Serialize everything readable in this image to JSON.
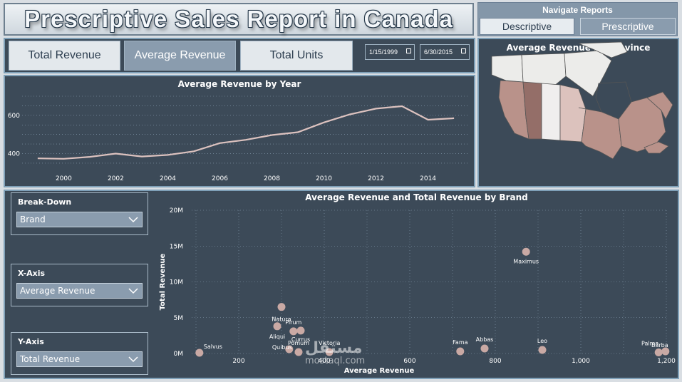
{
  "header": {
    "title": "Prescriptive Sales Report in Canada"
  },
  "navigate": {
    "title": "Navigate Reports",
    "descriptive": "Descriptive",
    "prescriptive": "Prescriptive"
  },
  "kpis": {
    "total_revenue": "Total Revenue",
    "average_revenue": "Average Revenue",
    "total_units": "Total Units"
  },
  "dates": {
    "start": "1/15/1999",
    "end": "6/30/2015"
  },
  "line_chart": {
    "title": "Average Revenue by Year"
  },
  "map_chart": {
    "title": "Average Revenue by Province"
  },
  "scatter_chart": {
    "title": "Average Revenue and Total Revenue by Brand"
  },
  "slicers": {
    "breakdown": {
      "label": "Break-Down",
      "value": "Brand"
    },
    "x_axis": {
      "label": "X-Axis",
      "value": "Average Revenue"
    },
    "y_axis": {
      "label": "Y-Axis",
      "value": "Total Revenue"
    }
  },
  "watermark": {
    "line1": "مستقل",
    "line2": "mostaql.com"
  },
  "colors": {
    "panel": "#3c4a58",
    "border": "#7fa0b8",
    "marker": "#c9a9a4",
    "line": "#dcc2bf"
  },
  "chart_data": [
    {
      "type": "line",
      "title": "Average Revenue by Year",
      "x": [
        1999,
        2000,
        2001,
        2002,
        2003,
        2004,
        2005,
        2006,
        2007,
        2008,
        2009,
        2010,
        2011,
        2012,
        2013,
        2014,
        2015
      ],
      "x_ticks": [
        "2000",
        "2002",
        "2004",
        "2006",
        "2008",
        "2010",
        "2012",
        "2014"
      ],
      "y_ticks": [
        "400",
        "600"
      ],
      "values": [
        375,
        373,
        383,
        400,
        385,
        393,
        412,
        455,
        472,
        497,
        512,
        563,
        605,
        635,
        648,
        577,
        585
      ],
      "ylim": [
        320,
        700
      ],
      "xlim": [
        1998.4,
        2015.6
      ],
      "grid": true
    },
    {
      "type": "scatter",
      "title": "Average Revenue and Total Revenue by Brand",
      "xlabel": "Average Revenue",
      "ylabel": "Total Revenue",
      "x_ticks": [
        "200",
        "400",
        "600",
        "800",
        "1,000",
        "1,200"
      ],
      "x_tick_values": [
        200,
        400,
        600,
        800,
        1000,
        1200
      ],
      "y_ticks": [
        "0M",
        "5M",
        "10M",
        "15M",
        "20M"
      ],
      "y_tick_values": [
        0,
        5,
        10,
        15,
        20
      ],
      "xlim": [
        90,
        1200
      ],
      "ylim": [
        0,
        20
      ],
      "points": [
        {
          "label": "Salvus",
          "x": 108,
          "y": 0.1
        },
        {
          "label": "Natura",
          "x": 300,
          "y": 6.5
        },
        {
          "label": "Aliqui",
          "x": 290,
          "y": 3.8
        },
        {
          "label": "Pirum",
          "x": 328,
          "y": 3.1
        },
        {
          "label": "Currus",
          "x": 345,
          "y": 3.2
        },
        {
          "label": "Quibus",
          "x": 318,
          "y": 0.6
        },
        {
          "label": "Pomum",
          "x": 340,
          "y": 0.2
        },
        {
          "label": "Victoria",
          "x": 412,
          "y": 0.2
        },
        {
          "label": "Fama",
          "x": 718,
          "y": 0.3
        },
        {
          "label": "Abbas",
          "x": 775,
          "y": 0.7
        },
        {
          "label": "Maximus",
          "x": 872,
          "y": 14.2
        },
        {
          "label": "Leo",
          "x": 910,
          "y": 0.5
        },
        {
          "label": "Palma",
          "x": 1182,
          "y": 0.15
        },
        {
          "label": "Barba",
          "x": 1198,
          "y": 0.3
        }
      ]
    }
  ]
}
